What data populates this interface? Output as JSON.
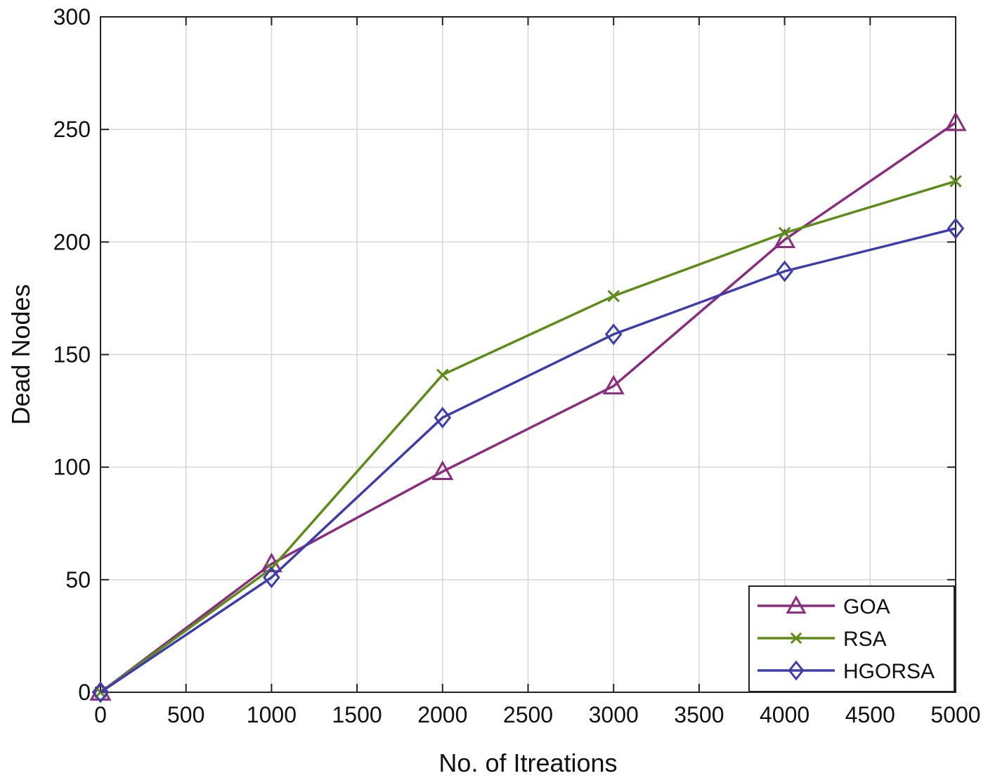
{
  "chart_data": {
    "type": "line",
    "title": "",
    "xlabel": "No. of Itreations",
    "ylabel": "Dead Nodes",
    "xlim": [
      0,
      5000
    ],
    "ylim": [
      0,
      300
    ],
    "xticks": [
      0,
      500,
      1000,
      1500,
      2000,
      2500,
      3000,
      3500,
      4000,
      4500,
      5000
    ],
    "yticks": [
      0,
      50,
      100,
      150,
      200,
      250,
      300
    ],
    "grid": true,
    "legend_position": "bottom-right",
    "x": [
      0,
      1000,
      2000,
      3000,
      4000,
      5000
    ],
    "series": [
      {
        "name": "GOA",
        "values": [
          0,
          57,
          98,
          136,
          201,
          253
        ],
        "color": "#8B2D7E",
        "marker": "triangle"
      },
      {
        "name": "RSA",
        "values": [
          0,
          55,
          141,
          176,
          204,
          227
        ],
        "color": "#5E8C1A",
        "marker": "x"
      },
      {
        "name": "HGORSA",
        "values": [
          0,
          51,
          122,
          159,
          187,
          206
        ],
        "color": "#3F3DAA",
        "marker": "diamond"
      }
    ]
  }
}
